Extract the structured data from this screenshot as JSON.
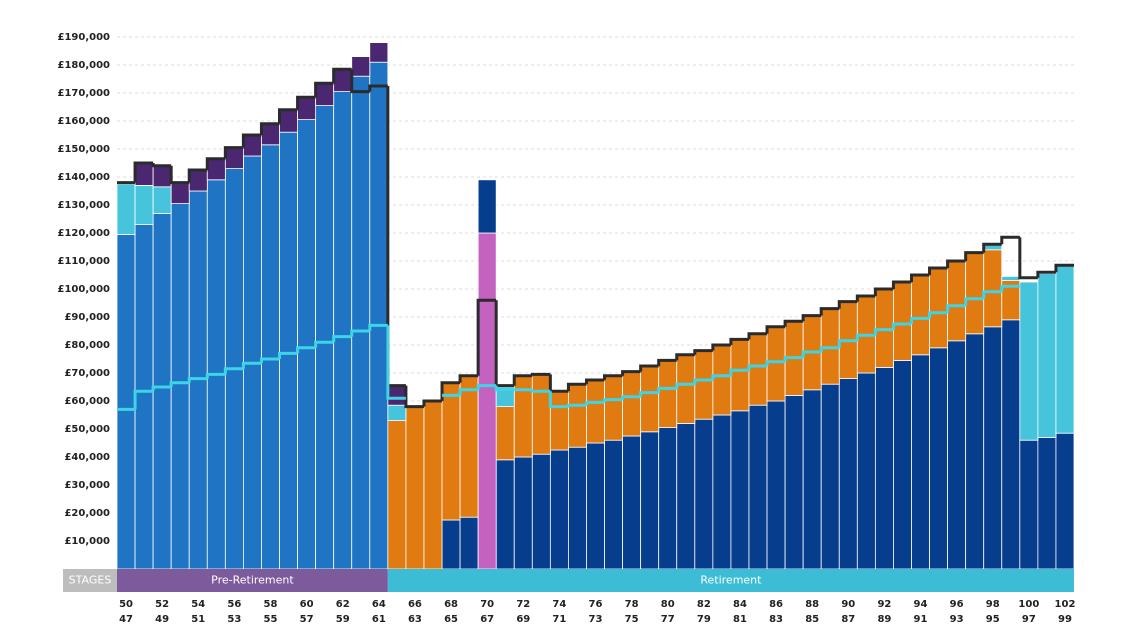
{
  "chart_data": {
    "type": "bar",
    "stacked": true,
    "grid": true,
    "ylim": [
      0,
      190000
    ],
    "yticks": [
      {
        "value": 10000,
        "label": "£10,000"
      },
      {
        "value": 20000,
        "label": "£20,000"
      },
      {
        "value": 30000,
        "label": "£30,000"
      },
      {
        "value": 40000,
        "label": "£40,000"
      },
      {
        "value": 50000,
        "label": "£50,000"
      },
      {
        "value": 60000,
        "label": "£60,000"
      },
      {
        "value": 70000,
        "label": "£70,000"
      },
      {
        "value": 80000,
        "label": "£80,000"
      },
      {
        "value": 90000,
        "label": "£90,000"
      },
      {
        "value": 100000,
        "label": "£100,000"
      },
      {
        "value": 110000,
        "label": "£110,000"
      },
      {
        "value": 120000,
        "label": "£120,000"
      },
      {
        "value": 130000,
        "label": "£130,000"
      },
      {
        "value": 140000,
        "label": "£140,000"
      },
      {
        "value": 150000,
        "label": "£150,000"
      },
      {
        "value": 160000,
        "label": "£160,000"
      },
      {
        "value": 170000,
        "label": "£170,000"
      },
      {
        "value": 180000,
        "label": "£180,000"
      },
      {
        "value": 190000,
        "label": "£190,000"
      }
    ],
    "categories": [
      "50",
      null,
      "52",
      null,
      "54",
      null,
      "56",
      null,
      "58",
      null,
      "60",
      null,
      "62",
      null,
      "64",
      null,
      "66",
      null,
      "68",
      null,
      "70",
      null,
      "72",
      null,
      "74",
      null,
      "76",
      null,
      "78",
      null,
      "80",
      null,
      "82",
      null,
      "84",
      null,
      "86",
      null,
      "88",
      null,
      "90",
      null,
      "92",
      null,
      "94",
      null,
      "96",
      null,
      "98",
      null,
      "100",
      null,
      "102"
    ],
    "categories2": [
      "47",
      null,
      "49",
      null,
      "51",
      null,
      "53",
      null,
      "55",
      null,
      "57",
      null,
      "59",
      null,
      "61",
      null,
      "63",
      null,
      "65",
      null,
      "67",
      null,
      "69",
      null,
      "71",
      null,
      "73",
      null,
      "75",
      null,
      "77",
      null,
      "79",
      null,
      "81",
      null,
      "83",
      null,
      "85",
      null,
      "87",
      null,
      "89",
      null,
      "91",
      null,
      "93",
      null,
      "95",
      null,
      "97",
      null,
      "99"
    ],
    "stages_label": "STAGES",
    "stages": [
      {
        "label": "Pre-Retirement",
        "from": "50",
        "to": "64",
        "color": "#7d5a9c"
      },
      {
        "label": "Retirement",
        "from": "64",
        "to": "102",
        "color": "#3dbdd5"
      }
    ],
    "series": [
      {
        "color": "#1f74c4",
        "values": [
          119500,
          123000,
          127000,
          130500,
          135000,
          139000,
          143000,
          147500,
          151500,
          156000,
          160500,
          165500,
          170500,
          176000,
          181000,
          null,
          null,
          null,
          null,
          null,
          null,
          null,
          null,
          null,
          null,
          null,
          null,
          null,
          null,
          null,
          null,
          null,
          null,
          null,
          null,
          null,
          null,
          null,
          null,
          null,
          null,
          null,
          null,
          null,
          null,
          null,
          null,
          null,
          null,
          null,
          null,
          null,
          null
        ]
      },
      {
        "color": "#063d8c",
        "values": [
          null,
          null,
          null,
          null,
          null,
          null,
          null,
          null,
          null,
          null,
          null,
          null,
          null,
          null,
          null,
          null,
          null,
          null,
          17500,
          18500,
          null,
          39000,
          40000,
          41000,
          42500,
          43500,
          45000,
          46000,
          47500,
          49000,
          50500,
          52000,
          53500,
          55000,
          56500,
          58500,
          60000,
          62000,
          64000,
          66000,
          68000,
          70000,
          72000,
          74500,
          76500,
          79000,
          81500,
          84000,
          86500,
          89000,
          46000,
          47000,
          48500
        ]
      },
      {
        "color": "#e07b12",
        "values": [
          null,
          null,
          null,
          null,
          null,
          null,
          null,
          null,
          null,
          null,
          null,
          null,
          null,
          null,
          null,
          53000,
          58000,
          60000,
          49000,
          50500,
          null,
          19000,
          29000,
          28500,
          21000,
          22500,
          22500,
          23000,
          23000,
          23500,
          24000,
          24500,
          24500,
          25000,
          25500,
          25500,
          26500,
          26500,
          26500,
          27000,
          27500,
          27500,
          28000,
          28000,
          28500,
          28500,
          28500,
          29000,
          27500,
          14000,
          null,
          null,
          null
        ]
      },
      {
        "color": "#c462c0",
        "values": [
          null,
          null,
          null,
          null,
          null,
          null,
          null,
          null,
          null,
          null,
          null,
          null,
          null,
          null,
          null,
          null,
          null,
          null,
          null,
          null,
          120000,
          null,
          null,
          null,
          null,
          null,
          null,
          null,
          null,
          null,
          null,
          null,
          null,
          null,
          null,
          null,
          null,
          null,
          null,
          null,
          null,
          null,
          null,
          null,
          null,
          null,
          null,
          null,
          null,
          null,
          null,
          null,
          null
        ]
      },
      {
        "color": "#45c4dc",
        "values": [
          18000,
          14000,
          9500,
          null,
          null,
          null,
          null,
          null,
          null,
          null,
          null,
          null,
          null,
          null,
          null,
          5500,
          null,
          null,
          null,
          null,
          null,
          7000,
          null,
          null,
          null,
          null,
          null,
          null,
          null,
          null,
          null,
          null,
          null,
          null,
          null,
          null,
          null,
          null,
          null,
          null,
          null,
          null,
          null,
          null,
          null,
          null,
          null,
          null,
          2000,
          1500,
          56500,
          58500,
          60000
        ]
      },
      {
        "color": "#063d8c",
        "values": [
          null,
          null,
          null,
          null,
          null,
          null,
          null,
          null,
          null,
          null,
          null,
          null,
          null,
          null,
          null,
          null,
          null,
          null,
          null,
          null,
          19000,
          null,
          null,
          null,
          null,
          null,
          null,
          null,
          null,
          null,
          null,
          null,
          null,
          null,
          null,
          null,
          null,
          null,
          null,
          null,
          null,
          null,
          null,
          null,
          null,
          null,
          null,
          null,
          null,
          null,
          null,
          null,
          null
        ]
      },
      {
        "color": "#4a2770",
        "values": [
          null,
          8000,
          7500,
          7500,
          7500,
          7500,
          7500,
          7500,
          7500,
          8000,
          8000,
          8000,
          8000,
          7000,
          7000,
          7000,
          null,
          null,
          null,
          null,
          null,
          null,
          null,
          null,
          null,
          null,
          null,
          null,
          null,
          null,
          null,
          null,
          null,
          null,
          null,
          null,
          null,
          null,
          null,
          null,
          null,
          null,
          null,
          null,
          null,
          null,
          null,
          null,
          null,
          null,
          null,
          null,
          null
        ]
      }
    ],
    "lines": [
      {
        "color": "#2b2b2b",
        "width": 3,
        "values": [
          138000,
          145000,
          144000,
          138000,
          142500,
          146500,
          150500,
          155000,
          159000,
          164000,
          168500,
          173500,
          178500,
          170500,
          172500,
          65500,
          58000,
          60000,
          66500,
          69000,
          96000,
          65500,
          69000,
          69500,
          63500,
          66000,
          67500,
          69000,
          70500,
          72500,
          74500,
          76500,
          78000,
          80000,
          82000,
          84000,
          86500,
          88500,
          90500,
          93000,
          95500,
          97500,
          100000,
          102500,
          105000,
          107500,
          110000,
          113000,
          116000,
          118500,
          104000,
          106000,
          108500
        ]
      },
      {
        "color": "#3dd4e6",
        "width": 3,
        "values": [
          57000,
          63500,
          65000,
          66500,
          68000,
          69500,
          71500,
          73500,
          75000,
          77000,
          79000,
          81000,
          83000,
          85000,
          87000,
          61000,
          null,
          null,
          62000,
          64000,
          65500,
          64000,
          64000,
          63500,
          58000,
          58500,
          59500,
          60500,
          61500,
          63000,
          64500,
          66000,
          67500,
          69000,
          71000,
          72500,
          74000,
          75500,
          77500,
          79000,
          81500,
          83500,
          85500,
          87500,
          89500,
          91500,
          94000,
          96500,
          99000,
          101000,
          null,
          null,
          null
        ]
      }
    ]
  }
}
